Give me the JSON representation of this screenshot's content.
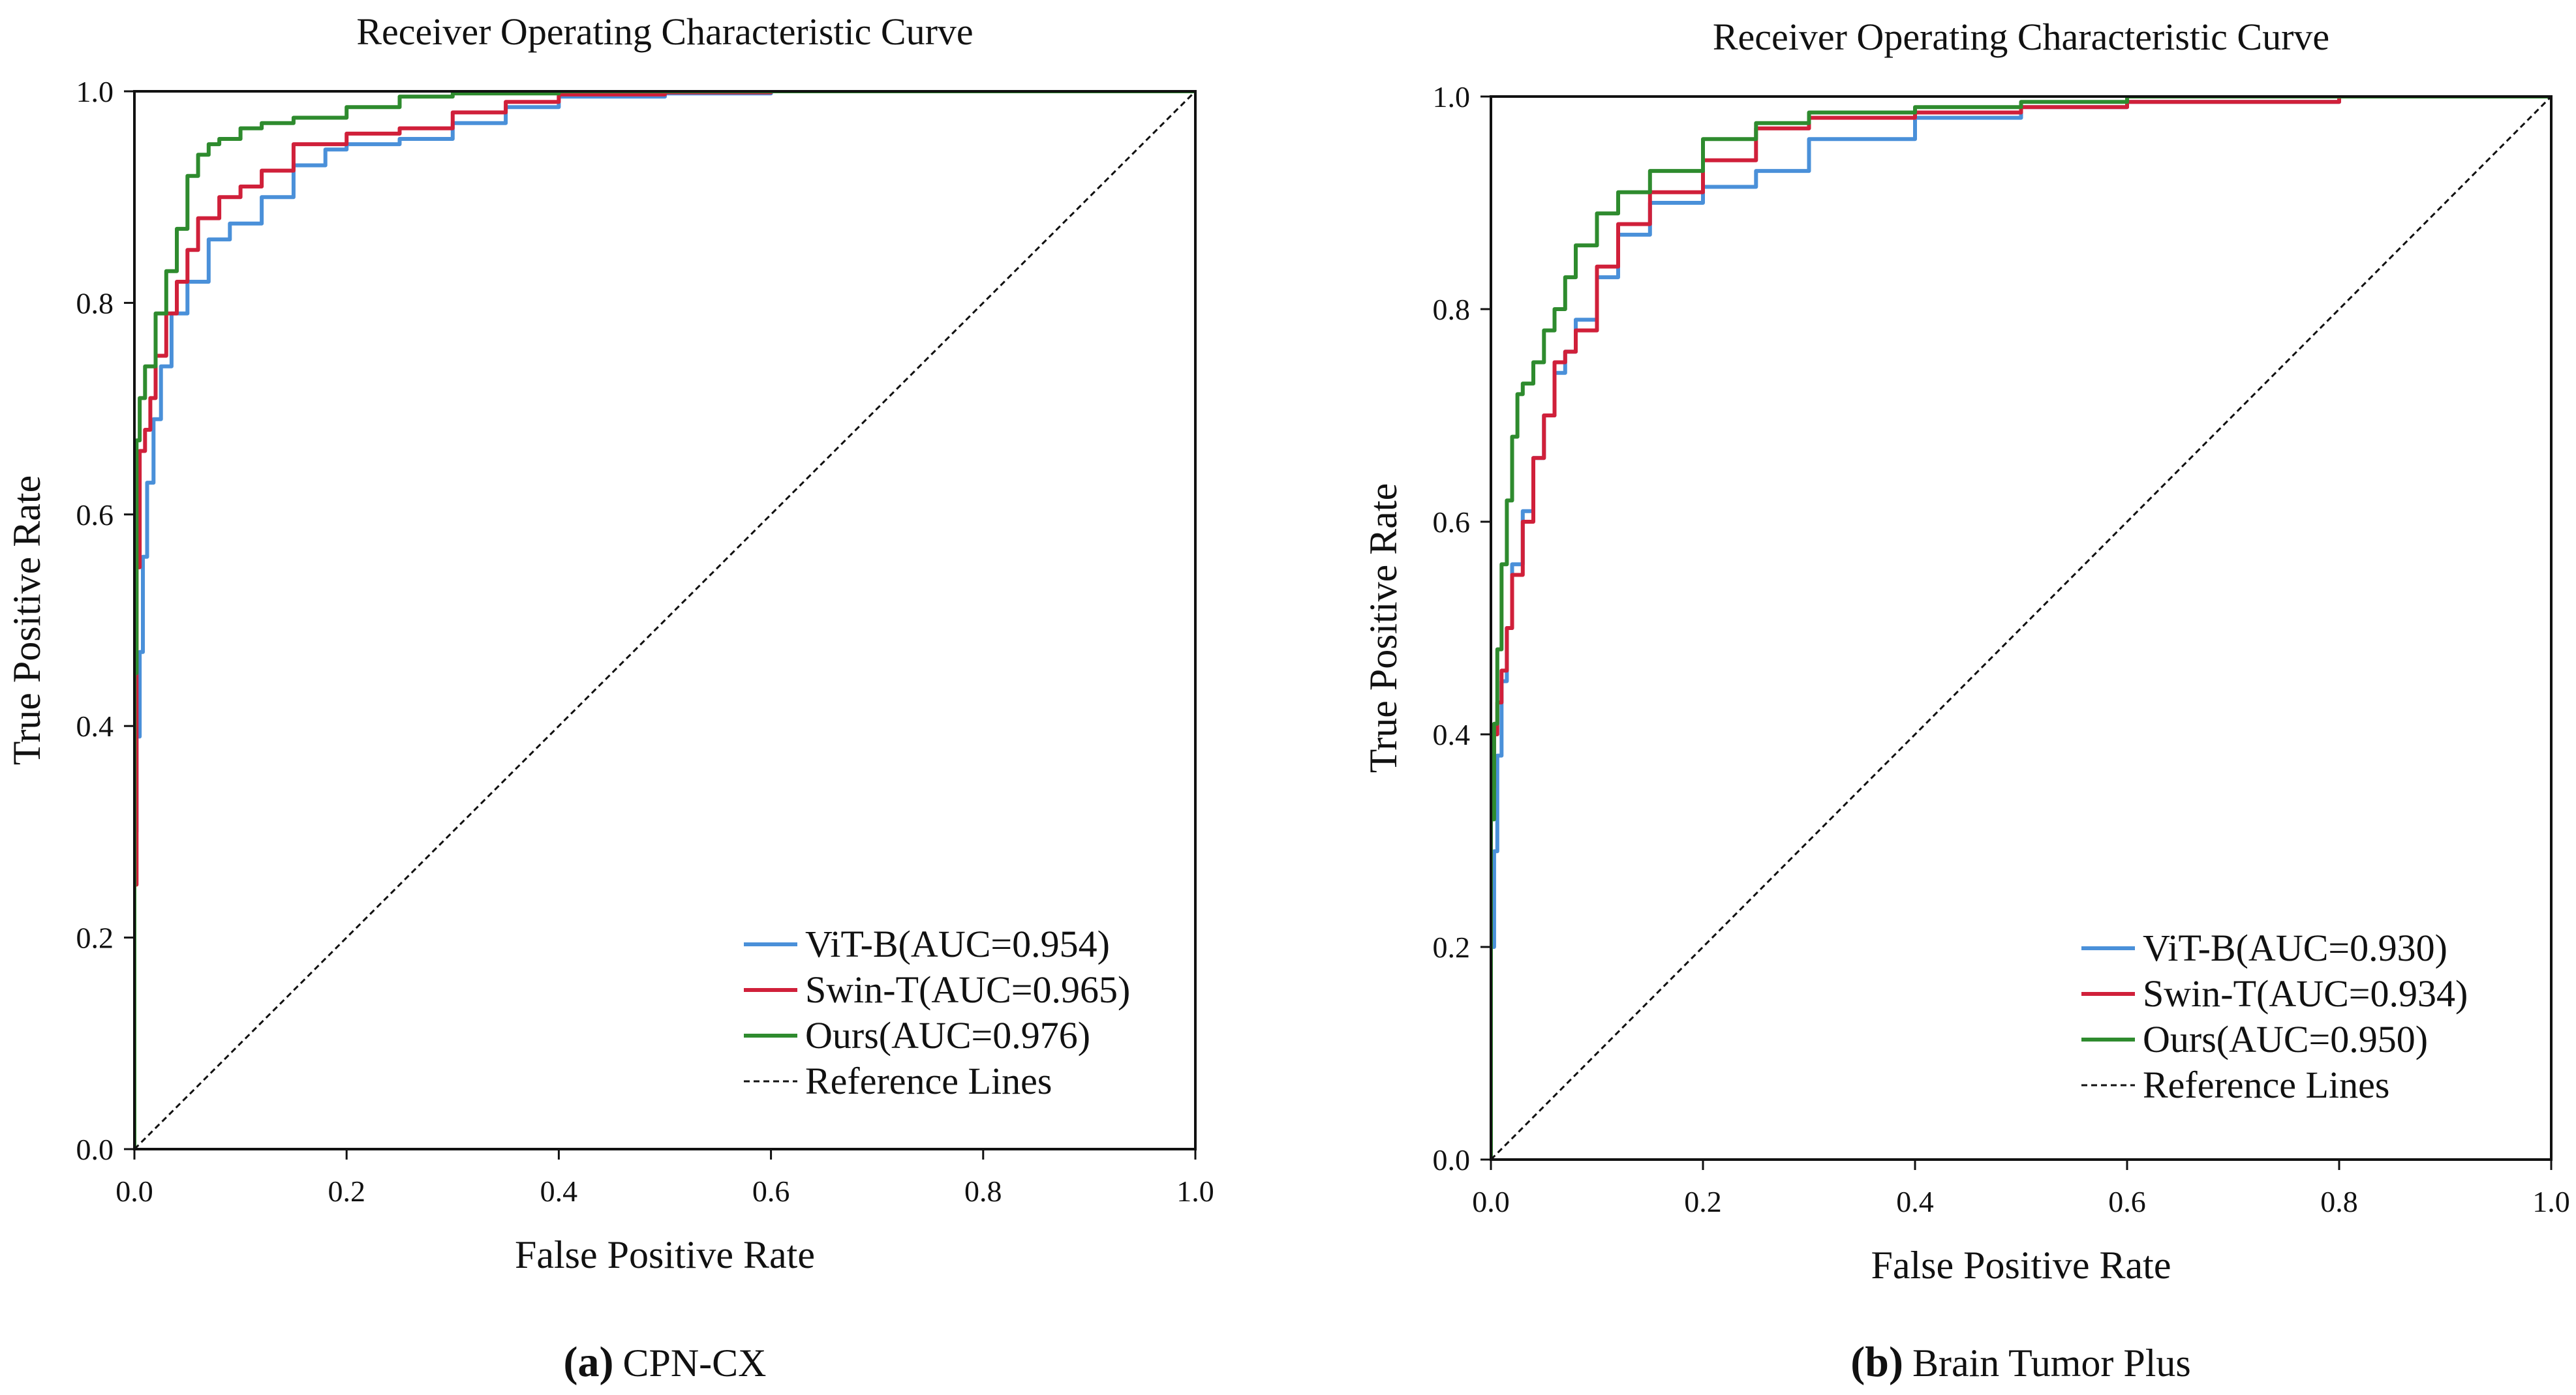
{
  "chart_data": [
    {
      "type": "line",
      "panel": "a",
      "title": "Receiver Operating Characteristic Curve",
      "xlabel": "False Positive Rate",
      "ylabel": "True Positive Rate",
      "xlim": [
        0,
        1
      ],
      "ylim": [
        0,
        1
      ],
      "xticks": [
        "0.0",
        "0.2",
        "0.4",
        "0.6",
        "0.8",
        "1.0"
      ],
      "yticks": [
        "0.0",
        "0.2",
        "0.4",
        "0.6",
        "0.8",
        "1.0"
      ],
      "grid": false,
      "legend_position": "bottom-right",
      "caption_letter": "(a)",
      "caption_text": "CPN-CX",
      "series": [
        {
          "name": "ViT-B(AUC=0.954)",
          "color": "#4a90d9",
          "x": [
            0,
            0.002,
            0.005,
            0.008,
            0.012,
            0.018,
            0.025,
            0.035,
            0.05,
            0.07,
            0.09,
            0.12,
            0.15,
            0.18,
            0.2,
            0.25,
            0.3,
            0.35,
            0.4,
            0.5,
            0.6,
            0.7,
            1.0
          ],
          "y": [
            0,
            0.3,
            0.39,
            0.47,
            0.56,
            0.63,
            0.69,
            0.74,
            0.79,
            0.82,
            0.86,
            0.875,
            0.9,
            0.93,
            0.945,
            0.95,
            0.955,
            0.97,
            0.985,
            0.995,
            0.998,
            1.0,
            1.0
          ]
        },
        {
          "name": "Swin-T(AUC=0.965)",
          "color": "#d0203a",
          "x": [
            0,
            0.002,
            0.005,
            0.01,
            0.015,
            0.02,
            0.03,
            0.04,
            0.05,
            0.06,
            0.08,
            0.1,
            0.12,
            0.15,
            0.2,
            0.25,
            0.3,
            0.35,
            0.4,
            0.5,
            0.6,
            0.7,
            1.0
          ],
          "y": [
            0,
            0.25,
            0.55,
            0.66,
            0.68,
            0.71,
            0.75,
            0.79,
            0.82,
            0.85,
            0.88,
            0.9,
            0.91,
            0.925,
            0.95,
            0.96,
            0.965,
            0.98,
            0.99,
            0.997,
            0.999,
            1.0,
            1.0
          ]
        },
        {
          "name": "Ours(AUC=0.976)",
          "color": "#2e8b2e",
          "x": [
            0,
            0.002,
            0.005,
            0.01,
            0.02,
            0.03,
            0.04,
            0.05,
            0.06,
            0.07,
            0.08,
            0.1,
            0.12,
            0.15,
            0.2,
            0.25,
            0.3,
            0.4,
            0.5,
            0.6,
            1.0
          ],
          "y": [
            0,
            0.45,
            0.67,
            0.71,
            0.74,
            0.79,
            0.83,
            0.87,
            0.92,
            0.94,
            0.95,
            0.955,
            0.965,
            0.97,
            0.975,
            0.985,
            0.995,
            0.998,
            1.0,
            1.0,
            1.0
          ]
        },
        {
          "name": "Reference Lines",
          "color": "#111111",
          "dashed": true,
          "x": [
            0,
            1
          ],
          "y": [
            0,
            1
          ]
        }
      ]
    },
    {
      "type": "line",
      "panel": "b",
      "title": "Receiver Operating Characteristic Curve",
      "xlabel": "False Positive Rate",
      "ylabel": "True Positive Rate",
      "xlim": [
        0,
        1
      ],
      "ylim": [
        0,
        1
      ],
      "xticks": [
        "0.0",
        "0.2",
        "0.4",
        "0.6",
        "0.8",
        "1.0"
      ],
      "yticks": [
        "0.0",
        "0.2",
        "0.4",
        "0.6",
        "0.8",
        "1.0"
      ],
      "grid": false,
      "legend_position": "bottom-right",
      "caption_letter": "(b)",
      "caption_text": "Brain Tumor Plus",
      "series": [
        {
          "name": "ViT-B(AUC=0.930)",
          "color": "#4a90d9",
          "x": [
            0,
            0.003,
            0.006,
            0.01,
            0.015,
            0.02,
            0.03,
            0.04,
            0.05,
            0.06,
            0.07,
            0.08,
            0.1,
            0.12,
            0.15,
            0.2,
            0.25,
            0.3,
            0.4,
            0.5,
            0.6,
            0.8,
            1.0
          ],
          "y": [
            0,
            0.2,
            0.29,
            0.38,
            0.45,
            0.5,
            0.56,
            0.61,
            0.66,
            0.7,
            0.74,
            0.76,
            0.79,
            0.83,
            0.87,
            0.9,
            0.915,
            0.93,
            0.96,
            0.98,
            0.99,
            0.995,
            1.0
          ]
        },
        {
          "name": "Swin-T(AUC=0.934)",
          "color": "#d0203a",
          "x": [
            0,
            0.003,
            0.006,
            0.01,
            0.015,
            0.02,
            0.03,
            0.04,
            0.05,
            0.06,
            0.07,
            0.08,
            0.1,
            0.12,
            0.15,
            0.2,
            0.25,
            0.3,
            0.4,
            0.5,
            0.6,
            0.8,
            0.9,
            1.0
          ],
          "y": [
            0,
            0.35,
            0.4,
            0.43,
            0.46,
            0.5,
            0.55,
            0.6,
            0.66,
            0.7,
            0.75,
            0.76,
            0.78,
            0.84,
            0.88,
            0.91,
            0.94,
            0.97,
            0.98,
            0.985,
            0.99,
            0.995,
            1.0,
            1.0
          ]
        },
        {
          "name": "Ours(AUC=0.950)",
          "color": "#2e8b2e",
          "x": [
            0,
            0.003,
            0.006,
            0.01,
            0.015,
            0.02,
            0.025,
            0.03,
            0.04,
            0.05,
            0.06,
            0.07,
            0.08,
            0.1,
            0.12,
            0.15,
            0.2,
            0.25,
            0.3,
            0.4,
            0.5,
            0.6,
            1.0
          ],
          "y": [
            0,
            0.32,
            0.41,
            0.48,
            0.56,
            0.62,
            0.68,
            0.72,
            0.73,
            0.75,
            0.78,
            0.8,
            0.83,
            0.86,
            0.89,
            0.91,
            0.93,
            0.96,
            0.975,
            0.985,
            0.99,
            0.995,
            1.0
          ]
        },
        {
          "name": "Reference Lines",
          "color": "#111111",
          "dashed": true,
          "x": [
            0,
            1
          ],
          "y": [
            0,
            1
          ]
        }
      ]
    }
  ]
}
